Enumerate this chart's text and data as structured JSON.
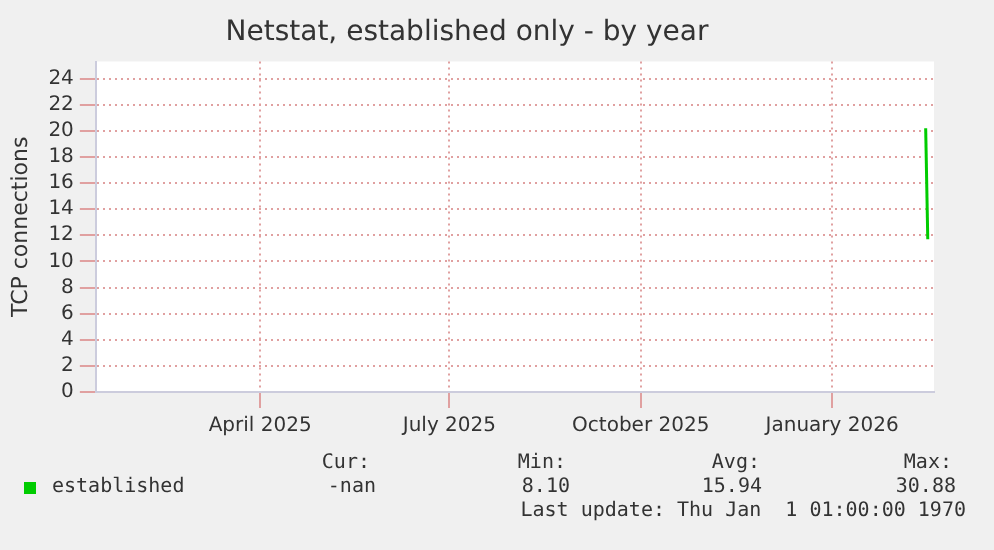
{
  "chart_data": {
    "type": "line",
    "title": "Netstat, established only - by year",
    "ylabel": "TCP connections",
    "x": [
      "2026-02-15",
      "2026-02-16"
    ],
    "series": [
      {
        "name": "established",
        "color": "#00cc00",
        "values": [
          20.2,
          11.7
        ]
      }
    ],
    "xlim": [
      "2025-01-12",
      "2026-02-19"
    ],
    "xticks": [
      {
        "value": "2025-04-01",
        "label": "April 2025"
      },
      {
        "value": "2025-07-01",
        "label": "July 2025"
      },
      {
        "value": "2025-10-01",
        "label": "October 2025"
      },
      {
        "value": "2026-01-01",
        "label": "January 2026"
      }
    ],
    "ylim": [
      0,
      25.3
    ],
    "yticks": [
      0,
      2,
      4,
      6,
      8,
      10,
      12,
      14,
      16,
      18,
      20,
      22,
      24
    ],
    "grid": true,
    "legend": "bottom left",
    "marker": "none",
    "line_style": "solid",
    "annotations": [
      "Cur:",
      "Min:",
      "Avg:",
      "Max:",
      "-nan",
      "8.10",
      "15.94",
      "30.88",
      "Last update: Thu Jan  1 01:00:00 1970"
    ]
  }
}
